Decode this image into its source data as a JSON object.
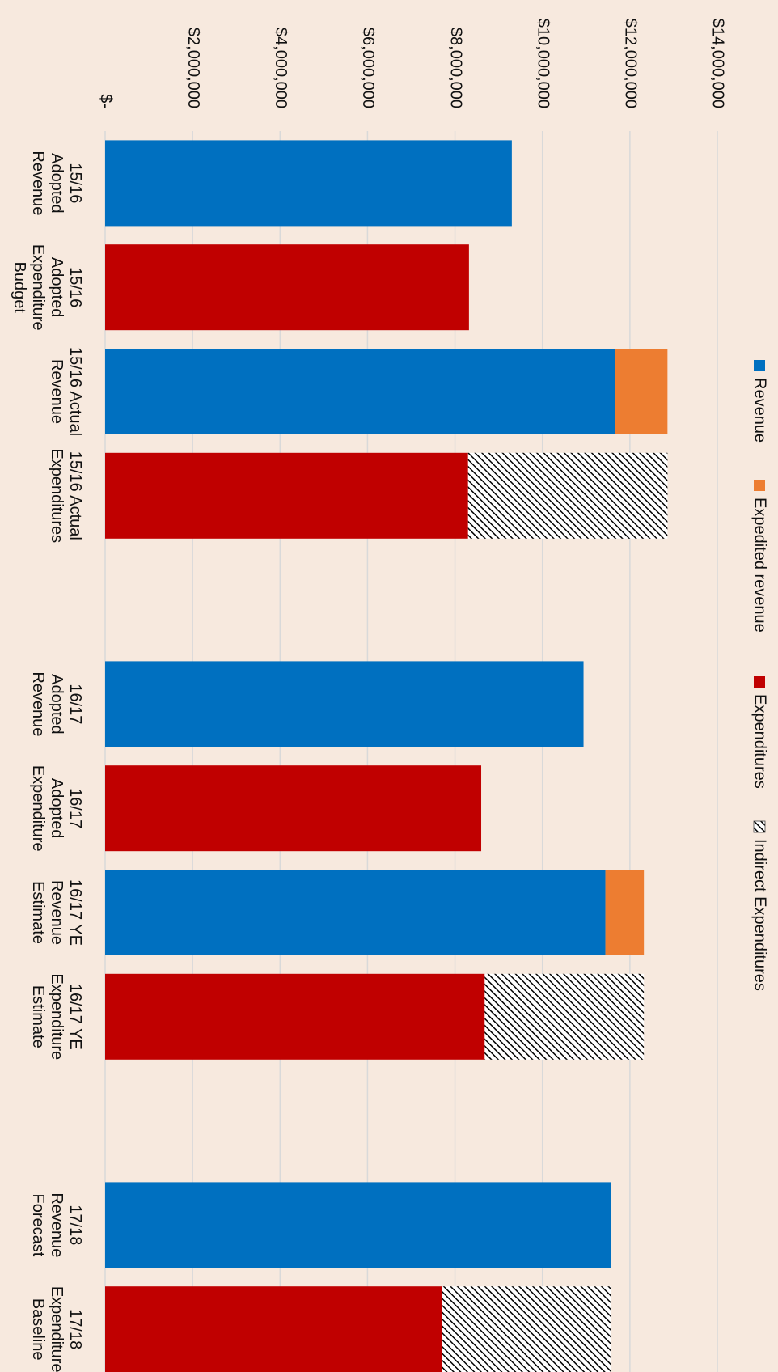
{
  "chart_data": {
    "type": "stacked_bar",
    "categories": [
      "15/16 Adopted Revenue",
      "15/16 Adopted Expenditure Budget",
      "15/16 Actual Revenue",
      "15/16 Actual Expenditures",
      null,
      "16/17 Adopted Revenue",
      "16/17 Adopted Expenditure",
      "16/17 YE Revenue Estimate",
      "16/17 YE Expenditure Estimate",
      null,
      "17/18 Revenue Forecast",
      "17/18 Expenditure Baseline"
    ],
    "series": [
      {
        "name": "Revenue",
        "color": "#0070c0",
        "values": [
          9300000,
          null,
          11660000,
          null,
          null,
          10940000,
          null,
          11440000,
          null,
          null,
          11560000,
          null
        ]
      },
      {
        "name": "Expedited revenue",
        "color": "#ed7d31",
        "values": [
          null,
          null,
          1200000,
          null,
          null,
          null,
          null,
          880000,
          null,
          null,
          null,
          null
        ]
      },
      {
        "name": "Expenditures",
        "color": "#c00000",
        "values": [
          null,
          8320000,
          null,
          8300000,
          null,
          null,
          8600000,
          null,
          8680000,
          null,
          null,
          7700000
        ]
      },
      {
        "name": "Indirect Expenditures",
        "color": "#000000",
        "pattern": "diagonal-hatch",
        "values": [
          null,
          null,
          null,
          4560000,
          null,
          null,
          null,
          null,
          3640000,
          null,
          null,
          3860000
        ]
      }
    ],
    "ylim": [
      0,
      14000000
    ],
    "yticks": [
      {
        "value": 0,
        "label": "$-"
      },
      {
        "value": 2000000,
        "label": "$2,000,000"
      },
      {
        "value": 4000000,
        "label": "$4,000,000"
      },
      {
        "value": 6000000,
        "label": "$6,000,000"
      },
      {
        "value": 8000000,
        "label": "$8,000,000"
      },
      {
        "value": 10000000,
        "label": "$10,000,000"
      },
      {
        "value": 12000000,
        "label": "$12,000,000"
      },
      {
        "value": 14000000,
        "label": "$14,000,000"
      }
    ],
    "grid": true,
    "legend": "top",
    "rotated": true
  }
}
